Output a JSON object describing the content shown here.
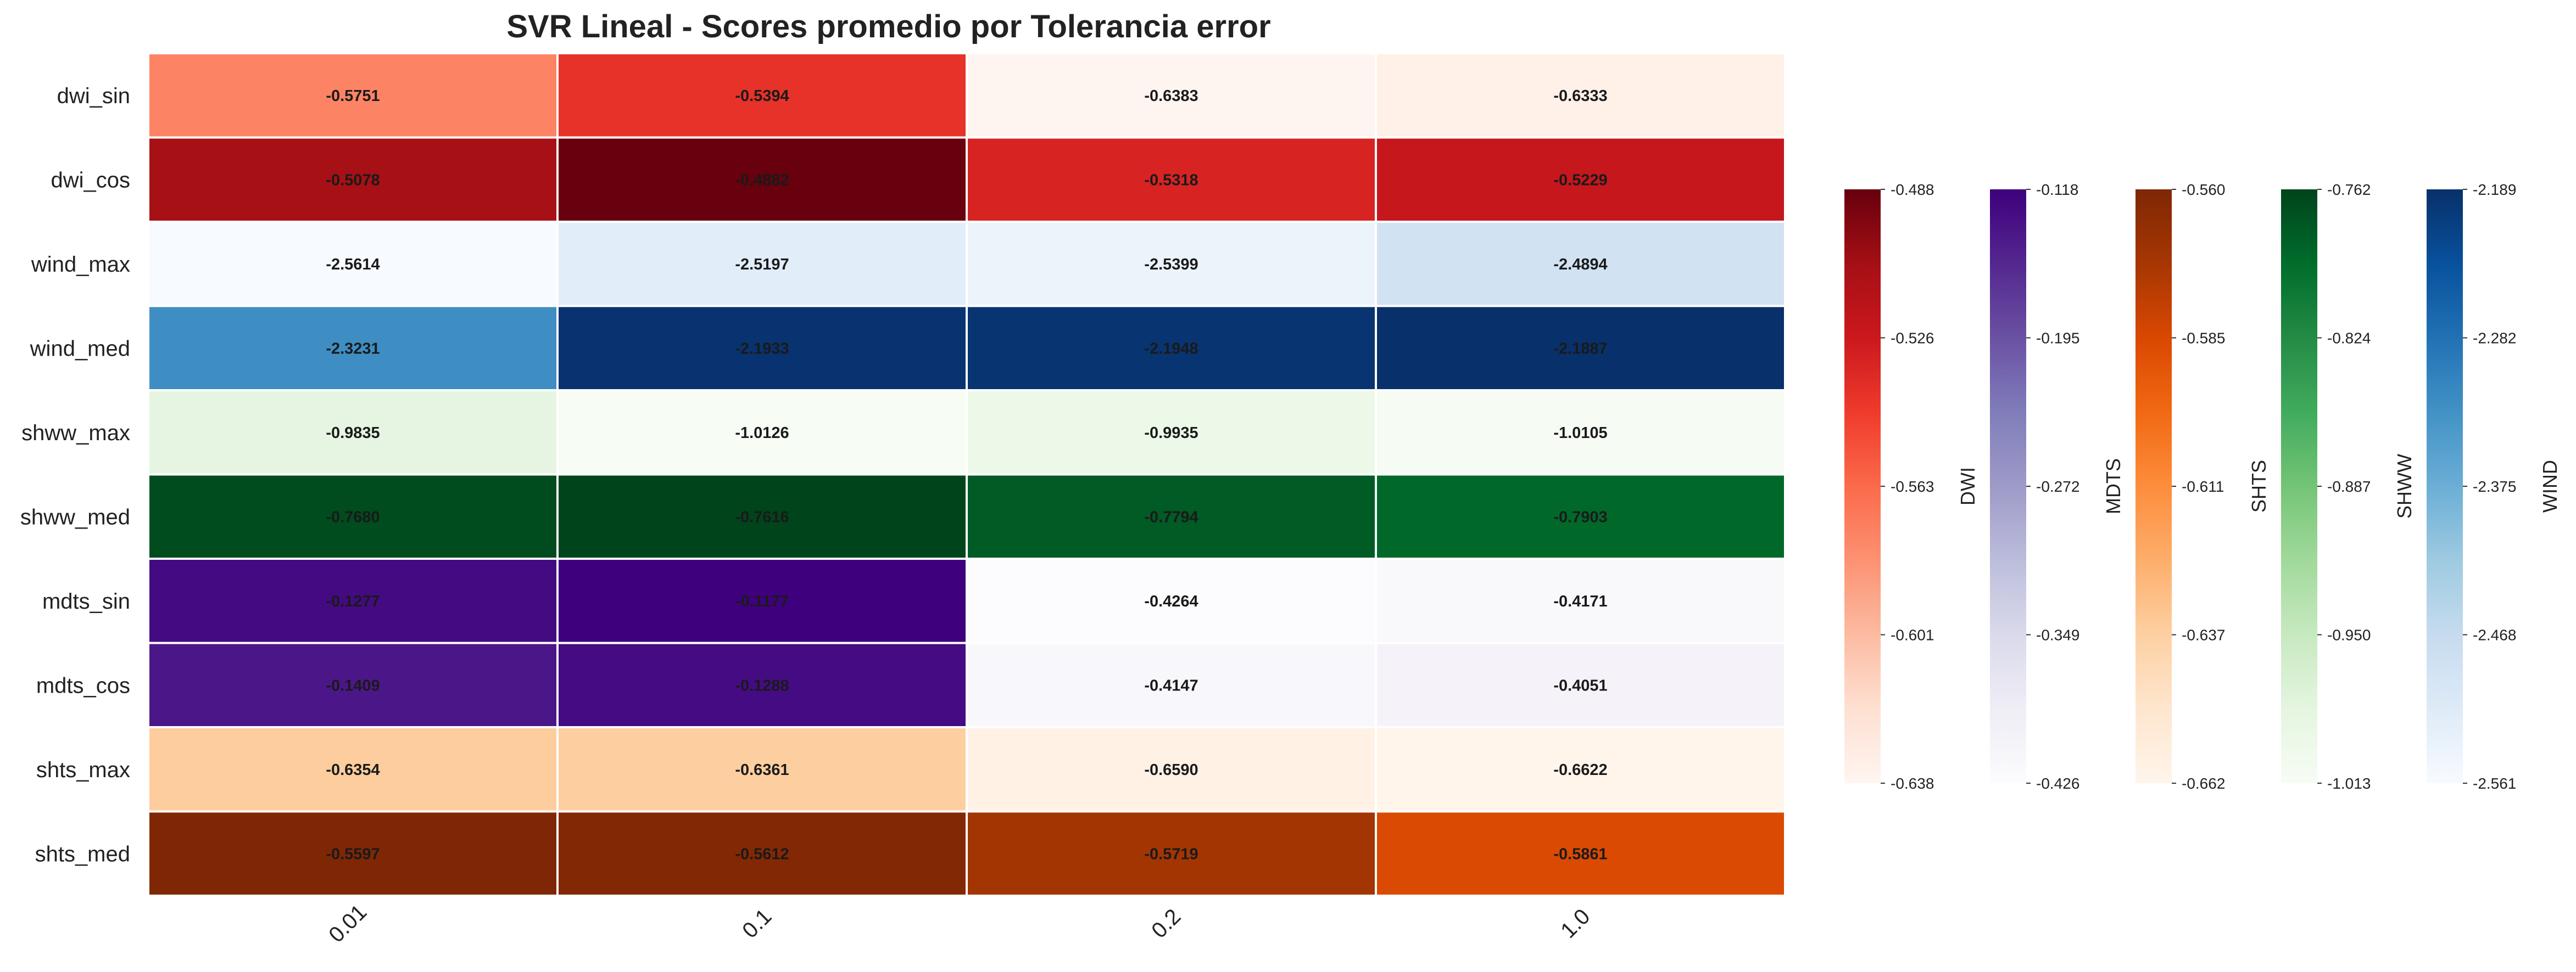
{
  "chart_data": {
    "type": "heatmap",
    "title": "SVR Lineal - Scores promedio por Tolerancia error",
    "xlabel": "",
    "ylabel": "",
    "x_categories": [
      "0.01",
      "0.1",
      "0.2",
      "1.0"
    ],
    "rows": [
      {
        "label": "dwi_sin",
        "group": "DWI",
        "values": [
          -0.5751,
          -0.5394,
          -0.6383,
          -0.6333
        ]
      },
      {
        "label": "dwi_cos",
        "group": "DWI",
        "values": [
          -0.5078,
          -0.4882,
          -0.5318,
          -0.5229
        ]
      },
      {
        "label": "wind_max",
        "group": "WIND",
        "values": [
          -2.5614,
          -2.5197,
          -2.5399,
          -2.4894
        ]
      },
      {
        "label": "wind_med",
        "group": "WIND",
        "values": [
          -2.3231,
          -2.1933,
          -2.1948,
          -2.1887
        ]
      },
      {
        "label": "shww_max",
        "group": "SHWW",
        "values": [
          -0.9835,
          -1.0126,
          -0.9935,
          -1.0105
        ]
      },
      {
        "label": "shww_med",
        "group": "SHWW",
        "values": [
          -0.768,
          -0.7616,
          -0.7794,
          -0.7903
        ]
      },
      {
        "label": "mdts_sin",
        "group": "DWI2",
        "values": [
          -0.1277,
          -0.1177,
          -0.4264,
          -0.4171
        ]
      },
      {
        "label": "mdts_cos",
        "group": "DWI2",
        "values": [
          -0.1409,
          -0.1288,
          -0.4147,
          -0.4051
        ]
      },
      {
        "label": "shts_max",
        "group": "MDTS2",
        "values": [
          -0.6354,
          -0.6361,
          -0.659,
          -0.6622
        ]
      },
      {
        "label": "shts_med",
        "group": "MDTS2",
        "values": [
          -0.5597,
          -0.5612,
          -0.5719,
          -0.5861
        ]
      }
    ],
    "colorbars": [
      {
        "key": "DWI",
        "label": "DWI",
        "cmap": "Reds",
        "min": -0.638,
        "max": -0.488,
        "ticks": [
          "-0.488",
          "-0.526",
          "-0.563",
          "-0.601",
          "-0.638"
        ]
      },
      {
        "key": "DWI2",
        "label": "MDTS",
        "cmap": "Purples",
        "min": -0.426,
        "max": -0.118,
        "ticks": [
          "-0.118",
          "-0.195",
          "-0.272",
          "-0.349",
          "-0.426"
        ]
      },
      {
        "key": "MDTS2",
        "label": "SHTS",
        "cmap": "Oranges",
        "min": -0.662,
        "max": -0.56,
        "ticks": [
          "-0.560",
          "-0.585",
          "-0.611",
          "-0.637",
          "-0.662"
        ]
      },
      {
        "key": "SHWW",
        "label": "SHWW",
        "cmap": "Greens",
        "min": -1.013,
        "max": -0.762,
        "ticks": [
          "-0.762",
          "-0.824",
          "-0.887",
          "-0.950",
          "-1.013"
        ]
      },
      {
        "key": "WIND",
        "label": "WIND",
        "cmap": "Blues",
        "min": -2.561,
        "max": -2.189,
        "ticks": [
          "-2.189",
          "-2.282",
          "-2.375",
          "-2.468",
          "-2.561"
        ]
      }
    ],
    "colormaps": {
      "Reds": [
        "#fff5f0",
        "#fee0d2",
        "#fcbba1",
        "#fc9272",
        "#fb6a4a",
        "#ef3b2c",
        "#cb181d",
        "#a50f15",
        "#67000d"
      ],
      "Purples": [
        "#fcfbfd",
        "#efedf5",
        "#dadaeb",
        "#bcbddc",
        "#9e9ac8",
        "#807dba",
        "#6a51a3",
        "#54278f",
        "#3f007d"
      ],
      "Oranges": [
        "#fff5eb",
        "#fee6ce",
        "#fdd0a2",
        "#fdae6b",
        "#fd8d3c",
        "#f16913",
        "#d94801",
        "#a63603",
        "#7f2704"
      ],
      "Greens": [
        "#f7fcf5",
        "#e5f5e0",
        "#c7e9c0",
        "#a1d99b",
        "#74c476",
        "#41ab5d",
        "#238b45",
        "#006d2c",
        "#00441b"
      ],
      "Blues": [
        "#f7fbff",
        "#deebf7",
        "#c6dbef",
        "#9ecae1",
        "#6baed6",
        "#4292c6",
        "#2171b5",
        "#08519c",
        "#08306b"
      ]
    },
    "value_format_decimals": 4,
    "grid_lines": "white"
  }
}
